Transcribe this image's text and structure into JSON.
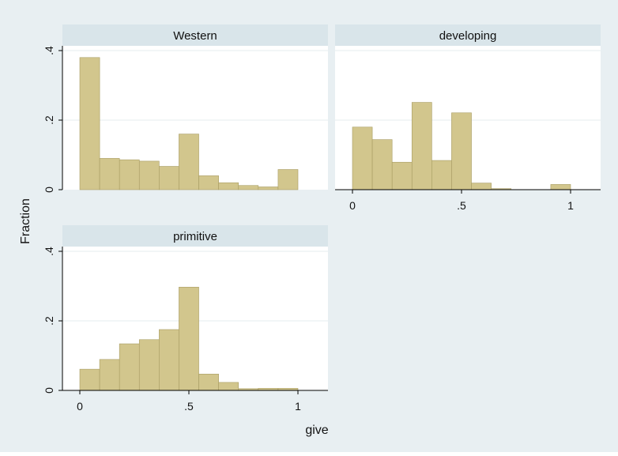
{
  "chart_data": {
    "type": "bar",
    "xlabel": "give",
    "ylabel": "Fraction",
    "xlim": [
      0,
      1
    ],
    "ylim": [
      0,
      0.4
    ],
    "bin_width": 0.0909,
    "grid": true,
    "panels": [
      {
        "title": "Western",
        "bin_starts": [
          0,
          0.0909,
          0.1818,
          0.2727,
          0.3636,
          0.4545,
          0.5455,
          0.6364,
          0.7273,
          0.8182,
          0.9091
        ],
        "values": [
          0.38,
          0.09,
          0.086,
          0.082,
          0.067,
          0.16,
          0.04,
          0.02,
          0.012,
          0.008,
          0.058
        ],
        "x_ticks": [],
        "y_ticks": [
          {
            "value": 0,
            "label": "0"
          },
          {
            "value": 0.2,
            "label": ".2"
          },
          {
            "value": 0.4,
            "label": ".4"
          }
        ]
      },
      {
        "title": "developing",
        "bin_starts": [
          0,
          0.0909,
          0.1818,
          0.2727,
          0.3636,
          0.4545,
          0.5455,
          0.6364,
          0.7273,
          0.8182,
          0.9091
        ],
        "values": [
          0.18,
          0.144,
          0.079,
          0.251,
          0.084,
          0.221,
          0.019,
          0.003,
          0,
          0,
          0.015
        ],
        "x_ticks": [
          {
            "value": 0,
            "label": "0"
          },
          {
            "value": 0.5,
            "label": ".5"
          },
          {
            "value": 1,
            "label": "1"
          }
        ],
        "y_ticks": []
      },
      {
        "title": "primitive",
        "bin_starts": [
          0,
          0.0909,
          0.1818,
          0.2727,
          0.3636,
          0.4545,
          0.5455,
          0.6364,
          0.7273,
          0.8182,
          0.9091
        ],
        "values": [
          0.061,
          0.089,
          0.134,
          0.146,
          0.175,
          0.297,
          0.047,
          0.023,
          0.005,
          0.006,
          0.006
        ],
        "x_ticks": [
          {
            "value": 0,
            "label": "0"
          },
          {
            "value": 0.5,
            "label": ".5"
          },
          {
            "value": 1,
            "label": "1"
          }
        ],
        "y_ticks": [
          {
            "value": 0,
            "label": "0"
          },
          {
            "value": 0.2,
            "label": ".2"
          },
          {
            "value": 0.4,
            "label": ".4"
          }
        ]
      }
    ]
  },
  "colors": {
    "background": "#e8eff2",
    "plot_region": "#ffffff",
    "panel_header": "#d9e5ea",
    "bar_fill": "#d2c68d",
    "bar_stroke": "#a89c63",
    "gridline": "#e6ecef",
    "axis": "#000000"
  }
}
